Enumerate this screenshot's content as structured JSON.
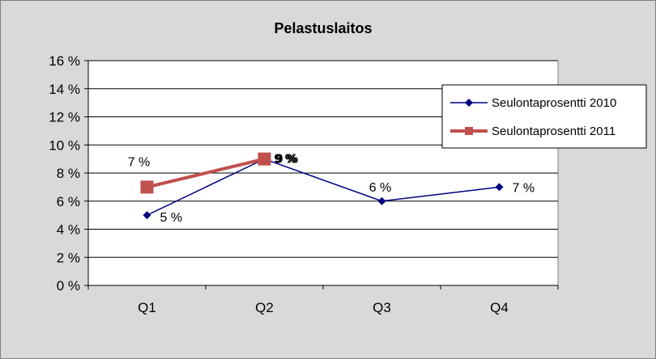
{
  "chart_data": {
    "type": "line",
    "title": "Pelastuslaitos",
    "categories": [
      "Q1",
      "Q2",
      "Q3",
      "Q4"
    ],
    "ylim": [
      0,
      16
    ],
    "yticks": [
      0,
      2,
      4,
      6,
      8,
      10,
      12,
      14,
      16
    ],
    "ytick_labels": [
      "0 %",
      "2 %",
      "4 %",
      "6 %",
      "8 %",
      "10 %",
      "12 %",
      "14 %",
      "16 %"
    ],
    "xlabel": "",
    "ylabel": "",
    "grid": true,
    "legend_position": "right",
    "series": [
      {
        "name": "Seulontaprosentti 2010",
        "values": [
          5,
          9,
          6,
          7
        ],
        "labels": [
          "5 %",
          "9 %",
          "6 %",
          "7 %"
        ],
        "color": "#000080",
        "marker": "diamond"
      },
      {
        "name": "Seulontaprosentti 2011",
        "values": [
          7,
          9,
          null,
          null
        ],
        "labels": [
          "7 %",
          "9 %",
          "",
          ""
        ],
        "color": "#c0504d",
        "marker": "square"
      }
    ]
  },
  "colors": {
    "chart_background": "#d9d9d9",
    "plot_background": "#ffffff",
    "gridline": "#000000"
  }
}
